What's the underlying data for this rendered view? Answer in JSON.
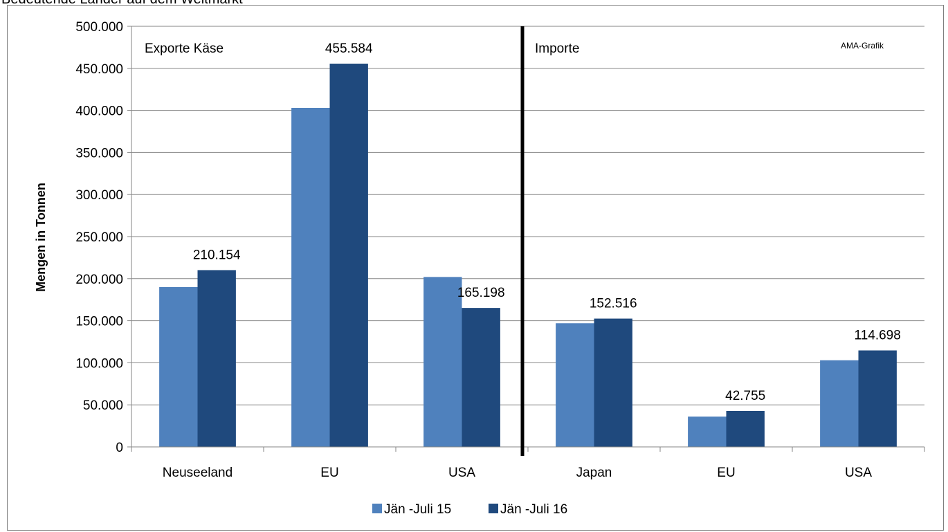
{
  "caption": "Bedeutende Länder auf dem Weltmarkt",
  "colors": {
    "series1": "#4f81bd",
    "series2": "#1f497d",
    "grid": "#868686",
    "divider": "#000000"
  },
  "chart_data": {
    "type": "bar",
    "ylabel": "Mengen in Tonnen",
    "ylim": [
      0,
      500000
    ],
    "yticks": [
      0,
      50000,
      100000,
      150000,
      200000,
      250000,
      300000,
      350000,
      400000,
      450000,
      500000
    ],
    "ytick_labels": [
      "0",
      "50.000",
      "100.000",
      "150.000",
      "200.000",
      "250.000",
      "300.000",
      "350.000",
      "400.000",
      "450.000",
      "500.000"
    ],
    "grid": true,
    "legend_position": "bottom",
    "categories": [
      "Neuseeland",
      "EU",
      "USA",
      "Japan",
      "EU",
      "USA"
    ],
    "series": [
      {
        "name": "Jän -Juli 15",
        "values": [
          190000,
          403000,
          202000,
          147000,
          36000,
          103000
        ]
      },
      {
        "name": "Jän -Juli 16",
        "values": [
          210154,
          455584,
          165198,
          152516,
          42755,
          114698
        ]
      }
    ],
    "data_labels": [
      "210.154",
      "455.584",
      "165.198",
      "152.516",
      "42.755",
      "114.698"
    ],
    "annotations": {
      "left_section": "Exporte Käse",
      "right_section": "Importe",
      "source": "AMA-Grafik"
    }
  }
}
